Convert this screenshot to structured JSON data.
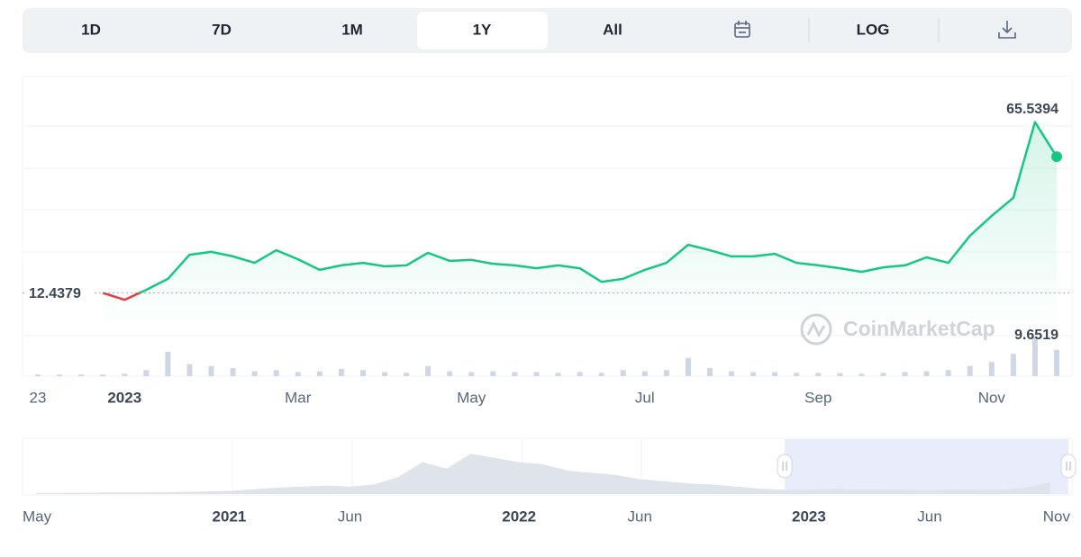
{
  "tabs": [
    "1D",
    "7D",
    "1M",
    "1Y",
    "All",
    "LOG"
  ],
  "active_tab": 3,
  "chart_data": {
    "type": "line",
    "categories": [
      "23",
      null,
      null,
      null,
      "2023",
      null,
      null,
      null,
      null,
      null,
      null,
      null,
      "Mar",
      null,
      null,
      null,
      null,
      null,
      null,
      null,
      "May",
      null,
      null,
      null,
      null,
      null,
      null,
      null,
      "Jul",
      null,
      null,
      null,
      null,
      null,
      null,
      null,
      "Sep",
      null,
      null,
      null,
      null,
      null,
      null,
      null,
      "Nov",
      null,
      null,
      null
    ],
    "series": [
      {
        "color": "#16c784",
        "down_color": "#ea3943",
        "values": [
          null,
          null,
          null,
          12.4379,
          10.3,
          13.4,
          16.8,
          24.3,
          25.2,
          23.8,
          21.8,
          25.7,
          22.9,
          19.6,
          21.0,
          21.8,
          20.7,
          21.0,
          24.9,
          22.4,
          22.7,
          21.5,
          21.0,
          20.1,
          21.0,
          20.1,
          15.9,
          16.8,
          19.6,
          21.8,
          27.4,
          25.7,
          23.8,
          23.8,
          24.6,
          21.8,
          21.0,
          20.1,
          19.0,
          20.4,
          21.0,
          23.5,
          21.8,
          30.2,
          36.4,
          42.0,
          65.5394,
          54.8
        ]
      },
      {
        "type": "bar",
        "axis": "y2",
        "color": "#cfd6e4",
        "values": [
          0.4,
          0.4,
          0.4,
          0.4,
          0.6,
          1.5,
          6.0,
          3.0,
          2.5,
          2.0,
          1.2,
          1.5,
          1.0,
          1.2,
          1.8,
          1.5,
          1.0,
          0.8,
          2.5,
          1.2,
          1.0,
          1.2,
          1.0,
          1.0,
          0.8,
          1.0,
          0.8,
          1.5,
          1.2,
          1.5,
          4.5,
          2.0,
          1.2,
          1.0,
          1.0,
          0.8,
          0.8,
          0.7,
          0.6,
          0.8,
          1.0,
          1.2,
          1.5,
          2.5,
          3.5,
          5.5,
          9.6519,
          6.5
        ]
      }
    ],
    "ylim": [
      0,
      80
    ],
    "y2lim": [
      0,
      10
    ],
    "watermark": "CoinMarketCap",
    "navigator": {
      "type": "area",
      "categories": [
        "May",
        null,
        null,
        null,
        null,
        null,
        null,
        null,
        "2021",
        null,
        null,
        null,
        null,
        "Jun",
        null,
        null,
        null,
        null,
        null,
        null,
        "2022",
        null,
        null,
        null,
        null,
        "Jun",
        null,
        null,
        null,
        null,
        null,
        null,
        "2023",
        null,
        null,
        null,
        null,
        "Jun",
        null,
        null,
        null,
        null,
        "Nov"
      ],
      "values": [
        5,
        5,
        6,
        7,
        7,
        8,
        10,
        12,
        15,
        22,
        30,
        35,
        40,
        35,
        45,
        80,
        150,
        120,
        190,
        170,
        150,
        140,
        110,
        100,
        90,
        70,
        60,
        50,
        45,
        35,
        25,
        20,
        20,
        25,
        22,
        22,
        20,
        18,
        22,
        20,
        20,
        30,
        55
      ],
      "ylim": [
        0,
        250
      ],
      "color": "#dfe3ea",
      "selection": [
        31,
        42
      ],
      "selection_color": "#e8ecfb"
    }
  }
}
